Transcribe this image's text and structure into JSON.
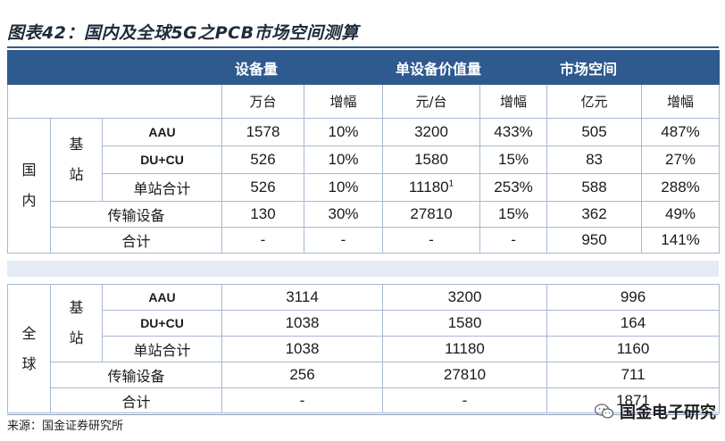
{
  "title": "图表42：国内及全球5G之PCB市场空间测算",
  "header": {
    "equipment": "设备量",
    "unit_value": "单设备价值量",
    "market": "市场空间"
  },
  "subheader": {
    "unit_wantai": "万台",
    "growth1": "增幅",
    "unit_yuan_tai": "元/台",
    "growth2": "增幅",
    "unit_yiyuan": "亿元",
    "growth3": "增幅"
  },
  "domestic": {
    "label_line1": "国",
    "label_line2": "内",
    "base_line1": "基",
    "base_line2": "站",
    "rows": [
      {
        "name": "AAU",
        "eq": "1578",
        "eq_g": "10%",
        "val": "3200",
        "val_g": "433%",
        "mkt": "505",
        "mkt_g": "487%"
      },
      {
        "name": "DU+CU",
        "eq": "526",
        "eq_g": "10%",
        "val": "1580",
        "val_g": "15%",
        "mkt": "83",
        "mkt_g": "27%"
      },
      {
        "name": "单站合计",
        "eq": "526",
        "eq_g": "10%",
        "val": "11180",
        "val_sup": "1",
        "val_g": "253%",
        "mkt": "588",
        "mkt_g": "288%"
      },
      {
        "name": "传输设备",
        "eq": "130",
        "eq_g": "30%",
        "val": "27810",
        "val_g": "15%",
        "mkt": "362",
        "mkt_g": "49%"
      },
      {
        "name": "合计",
        "eq": "-",
        "eq_g": "-",
        "val": "-",
        "val_g": "-",
        "mkt": "950",
        "mkt_g": "141%"
      }
    ]
  },
  "global": {
    "label_line1": "全",
    "label_line2": "球",
    "base_line1": "基",
    "base_line2": "站",
    "rows": [
      {
        "name": "AAU",
        "eq": "3114",
        "val": "3200",
        "mkt": "996"
      },
      {
        "name": "DU+CU",
        "eq": "1038",
        "val": "1580",
        "mkt": "164"
      },
      {
        "name": "单站合计",
        "eq": "1038",
        "val": "11180",
        "mkt": "1160"
      },
      {
        "name": "传输设备",
        "eq": "256",
        "val": "27810",
        "mkt": "711"
      },
      {
        "name": "合计",
        "eq": "-",
        "val": "-",
        "mkt": "1871"
      }
    ]
  },
  "source": "来源：国金证券研究所",
  "brand": "国金电子研究",
  "icons": {
    "brand": "wechat-icon"
  }
}
